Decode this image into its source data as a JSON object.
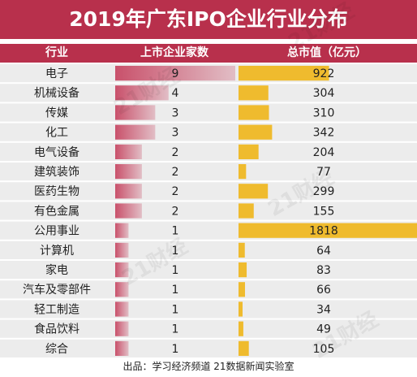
{
  "title": "2019年广东IPO企业行业分布",
  "headers": {
    "industry": "行业",
    "count": "上市企业家数",
    "value": "总市值（亿元）"
  },
  "source": "出品：学习经济频道  21数据新闻实验室",
  "watermark": "21财经",
  "colors": {
    "brand": "#b8304c",
    "count_bar": "#c9516b",
    "value_bar": "#efbb2e",
    "row_bg": "#ececec"
  },
  "chart_data": {
    "type": "table",
    "title": "2019年广东IPO企业行业分布",
    "columns": [
      "行业",
      "上市企业家数",
      "总市值（亿元）"
    ],
    "rows": [
      {
        "industry": "电子",
        "count": 9,
        "value": 922
      },
      {
        "industry": "机械设备",
        "count": 4,
        "value": 304
      },
      {
        "industry": "传媒",
        "count": 3,
        "value": 310
      },
      {
        "industry": "化工",
        "count": 3,
        "value": 342
      },
      {
        "industry": "电气设备",
        "count": 2,
        "value": 204
      },
      {
        "industry": "建筑装饰",
        "count": 2,
        "value": 77
      },
      {
        "industry": "医药生物",
        "count": 2,
        "value": 299
      },
      {
        "industry": "有色金属",
        "count": 2,
        "value": 155
      },
      {
        "industry": "公用事业",
        "count": 1,
        "value": 1818
      },
      {
        "industry": "计算机",
        "count": 1,
        "value": 64
      },
      {
        "industry": "家电",
        "count": 1,
        "value": 83
      },
      {
        "industry": "汽车及零部件",
        "count": 1,
        "value": 66
      },
      {
        "industry": "轻工制造",
        "count": 1,
        "value": 34
      },
      {
        "industry": "食品饮料",
        "count": 1,
        "value": 49
      },
      {
        "industry": "综合",
        "count": 1,
        "value": 105
      }
    ]
  }
}
